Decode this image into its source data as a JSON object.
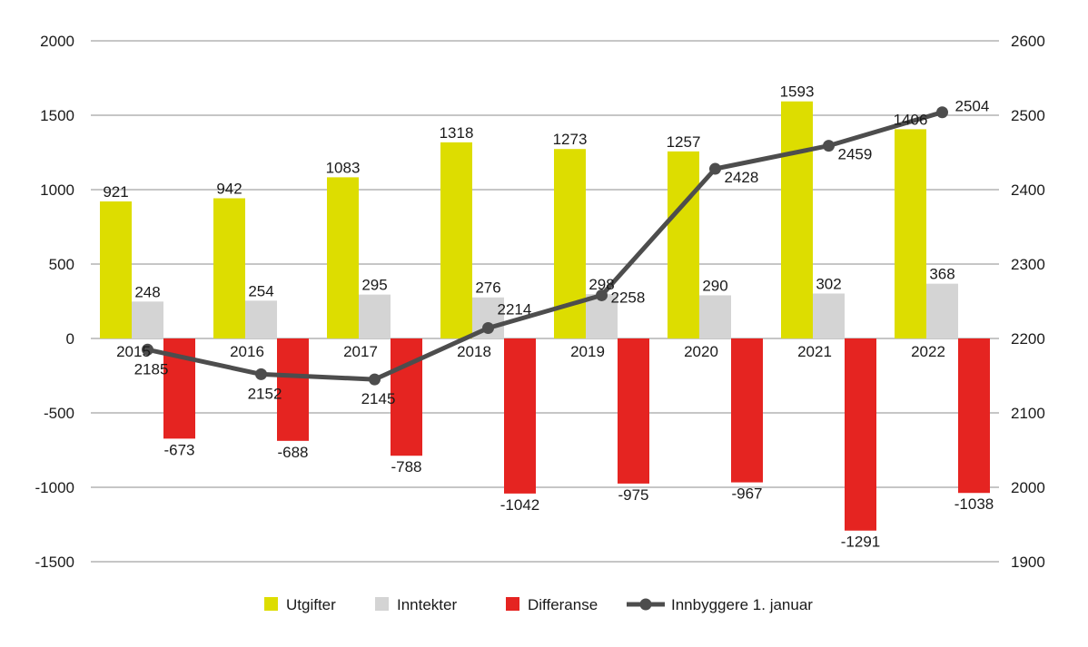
{
  "chart_data": {
    "type": "bar",
    "categories": [
      "2015",
      "2016",
      "2017",
      "2018",
      "2019",
      "2020",
      "2021",
      "2022"
    ],
    "series": [
      {
        "name": "Utgifter",
        "type": "bar",
        "axis": "left",
        "color": "#dddd00",
        "values": [
          921,
          942,
          1083,
          1318,
          1273,
          1257,
          1593,
          1406
        ]
      },
      {
        "name": "Inntekter",
        "type": "bar",
        "axis": "left",
        "color": "#d4d4d4",
        "values": [
          248,
          254,
          295,
          276,
          298,
          290,
          302,
          368
        ]
      },
      {
        "name": "Differanse",
        "type": "bar",
        "axis": "left",
        "color": "#e52421",
        "values": [
          -673,
          -688,
          -788,
          -1042,
          -975,
          -967,
          -1291,
          -1038
        ]
      },
      {
        "name": "Innbyggere 1. januar",
        "type": "line",
        "axis": "right",
        "color": "#4d4d4d",
        "values": [
          2185,
          2152,
          2145,
          2214,
          2258,
          2428,
          2459,
          2504
        ]
      }
    ],
    "y_left": {
      "min": -1500,
      "max": 2000,
      "ticks": [
        2000,
        1500,
        1000,
        500,
        0,
        -500,
        -1000,
        -1500
      ]
    },
    "y_right": {
      "min": 1900,
      "max": 2600,
      "ticks": [
        2600,
        2500,
        2400,
        2300,
        2200,
        2100,
        2000,
        1900
      ]
    },
    "grid": true,
    "legend_position": "bottom"
  }
}
